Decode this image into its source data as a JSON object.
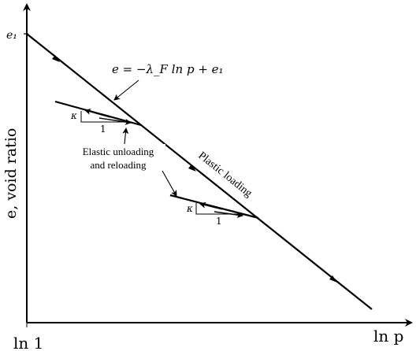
{
  "axes": {
    "y_label": "e, void ratio",
    "x_label": "ln p",
    "origin_label": "ln 1",
    "y_intercept_label": "e₁"
  },
  "ncl_equation": "e = −λ_F ln p + e₁",
  "labels": {
    "elastic_line1": "Elastic unloading",
    "elastic_line2": "and reloading",
    "plastic": "Plastic loading"
  },
  "slope_triangles": [
    {
      "rise_label": "κ",
      "run_label": "1"
    },
    {
      "rise_label": "κ",
      "run_label": "1"
    }
  ],
  "colors": {
    "line": "#000000",
    "background": "#ffffff"
  }
}
